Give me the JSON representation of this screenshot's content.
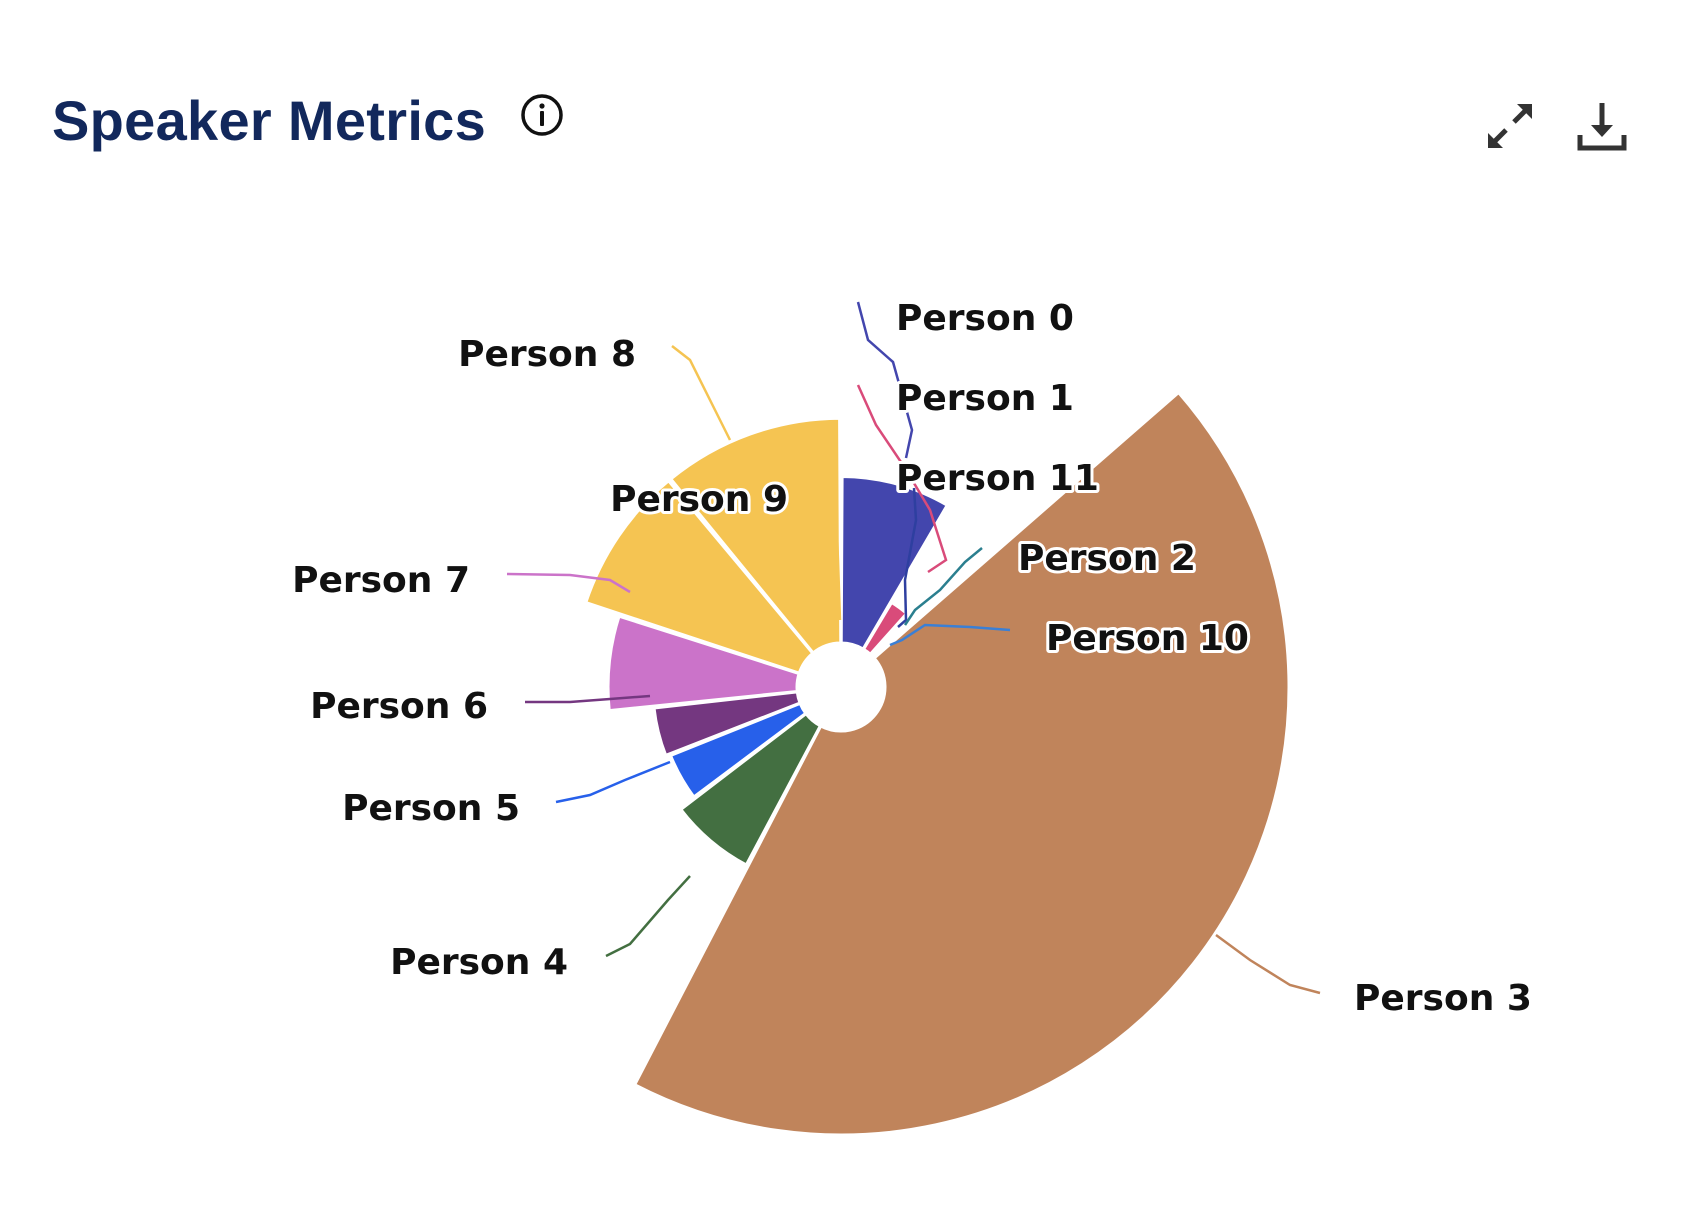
{
  "header": {
    "title": "Speaker Metrics",
    "info_icon": "info-circle-icon"
  },
  "actions": {
    "expand_icon": "expand-icon",
    "download_icon": "download-icon"
  },
  "chart_data": {
    "type": "pie",
    "subtype": "variable-radius rose (nightingale) with inner hole",
    "title": "Speaker Metrics",
    "start_angle_deg": 0,
    "direction": "clockwise",
    "slices": [
      {
        "name": "Person 0",
        "angle_share": 0.085,
        "radius_value": 0.47,
        "color": "#4346ad"
      },
      {
        "name": "Person 1",
        "angle_share": 0.032,
        "radius_value": 0.22,
        "color": "#d94b7a"
      },
      {
        "name": "Person 11",
        "angle_share": 0.007,
        "radius_value": 0.16,
        "color": "#2e3fa0"
      },
      {
        "name": "Person 2",
        "angle_share": 0.005,
        "radius_value": 0.15,
        "color": "#2b7f8f"
      },
      {
        "name": "Person 10",
        "angle_share": 0.006,
        "radius_value": 0.14,
        "color": "#3a7fd5"
      },
      {
        "name": "Person 3",
        "angle_share": 0.442,
        "radius_value": 1.0,
        "color": "#c0845b"
      },
      {
        "name": "Person 4",
        "angle_share": 0.07,
        "radius_value": 0.45,
        "color": "#436f41"
      },
      {
        "name": "Person 5",
        "angle_share": 0.043,
        "radius_value": 0.41,
        "color": "#2760ea"
      },
      {
        "name": "Person 6",
        "angle_share": 0.043,
        "radius_value": 0.42,
        "color": "#743780"
      },
      {
        "name": "Person 7",
        "angle_share": 0.067,
        "radius_value": 0.52,
        "color": "#cb73c9"
      },
      {
        "name": "Person 9",
        "angle_share": 0.09,
        "radius_value": 0.6,
        "color": "#f5c452"
      },
      {
        "name": "Person 8",
        "angle_share": 0.11,
        "radius_value": 0.6,
        "color": "#f5c452"
      }
    ]
  }
}
